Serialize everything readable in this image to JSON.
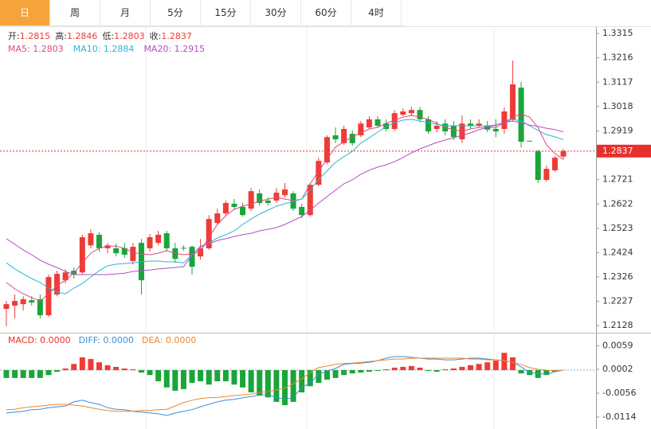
{
  "tabs": [
    "日",
    "周",
    "月",
    "5分",
    "15分",
    "30分",
    "60分",
    "4时"
  ],
  "active_tab": 0,
  "chart_data": [
    {
      "type": "candlestick",
      "info_labels": [
        "开:",
        "高:",
        "低:",
        "收:"
      ],
      "up_color": "#ef3b36",
      "down_color": "#19a53a",
      "open": [
        1.2196,
        1.2209,
        1.2215,
        1.2231,
        1.2235,
        1.217,
        1.2254,
        1.2312,
        1.2351,
        1.2344,
        1.2454,
        1.2497,
        1.2442,
        1.2442,
        1.2442,
        1.239,
        1.2464,
        1.2442,
        1.2464,
        1.2503,
        1.2442,
        1.2444,
        1.2448,
        1.2409,
        1.2442,
        1.2545,
        1.2584,
        1.2623,
        1.261,
        1.2603,
        1.2665,
        1.2636,
        1.2636,
        1.2658,
        1.2665,
        1.261,
        1.2577,
        1.27,
        1.2791,
        1.2901,
        1.2869,
        1.2907,
        1.2901,
        1.2933,
        1.2966,
        1.2949,
        1.2927,
        1.2985,
        1.2991,
        1.3004,
        1.2966,
        1.2927,
        1.2949,
        1.294,
        1.2885,
        1.2949,
        1.294,
        1.294,
        1.2927,
        1.2927,
        1.2966,
        1.3095,
        1.2879,
        1.2836,
        1.272,
        1.2759,
        1.2815
      ],
      "high": [
        1.2228,
        1.2254,
        1.2247,
        1.2247,
        1.2254,
        1.2335,
        1.2351,
        1.2357,
        1.2364,
        1.2497,
        1.2519,
        1.2506,
        1.2464,
        1.2461,
        1.2464,
        1.2464,
        1.248,
        1.25,
        1.2513,
        1.2513,
        1.2464,
        1.2454,
        1.2454,
        1.248,
        1.2577,
        1.2603,
        1.2636,
        1.2642,
        1.2626,
        1.2687,
        1.2681,
        1.2649,
        1.2687,
        1.2707,
        1.2674,
        1.2623,
        1.2707,
        1.281,
        1.2901,
        1.2933,
        1.294,
        1.292,
        1.2959,
        1.2979,
        1.2979,
        1.2966,
        1.3004,
        1.3011,
        1.3017,
        1.3017,
        1.2979,
        1.2959,
        1.2966,
        1.2959,
        1.2982,
        1.2966,
        1.2966,
        1.2959,
        1.2966,
        1.3014,
        1.3205,
        1.3118,
        1.2879,
        1.2843,
        1.2778,
        1.2817,
        1.2846
      ],
      "low": [
        1.2125,
        1.2157,
        1.2189,
        1.2209,
        1.2157,
        1.2163,
        1.2247,
        1.2299,
        1.2319,
        1.2335,
        1.2442,
        1.2429,
        1.2422,
        1.2409,
        1.2403,
        1.2377,
        1.2254,
        1.2429,
        1.2454,
        1.2429,
        1.2383,
        1.2432,
        1.2335,
        1.2396,
        1.2435,
        1.2539,
        1.2577,
        1.2597,
        1.2571,
        1.2594,
        1.2616,
        1.2616,
        1.2626,
        1.2649,
        1.2594,
        1.2564,
        1.2571,
        1.2694,
        1.2784,
        1.2869,
        1.2862,
        1.2859,
        1.2894,
        1.2927,
        1.2933,
        1.2917,
        1.292,
        1.2979,
        1.2979,
        1.2953,
        1.2907,
        1.2914,
        1.2901,
        1.2882,
        1.2869,
        1.2927,
        1.2933,
        1.2914,
        1.2894,
        1.2907,
        1.2959,
        1.2852,
        1.2878,
        1.2707,
        1.2713,
        1.2752,
        1.2803
      ],
      "close": [
        1.2215,
        1.2228,
        1.2235,
        1.2222,
        1.217,
        1.2325,
        1.2338,
        1.2344,
        1.2335,
        1.2487,
        1.2503,
        1.2442,
        1.2454,
        1.2422,
        1.2416,
        1.2448,
        1.2312,
        1.2487,
        1.2497,
        1.2442,
        1.2399,
        1.2442,
        1.2367,
        1.2442,
        1.2561,
        1.2584,
        1.2626,
        1.261,
        1.2577,
        1.2674,
        1.2626,
        1.2626,
        1.2668,
        1.2681,
        1.2603,
        1.2577,
        1.27,
        1.2797,
        1.2894,
        1.2885,
        1.2927,
        1.2869,
        1.2949,
        1.2966,
        1.294,
        1.2927,
        1.2991,
        1.2998,
        1.3004,
        1.2966,
        1.2917,
        1.294,
        1.2917,
        1.2894,
        1.2949,
        1.294,
        1.2949,
        1.2924,
        1.2917,
        1.2998,
        1.3108,
        1.2875,
        1.2878,
        1.272,
        1.2765,
        1.281,
        1.2837
      ],
      "series": [
        {
          "name": "MA5: 1.2803",
          "color": "#e04a7c",
          "values": [
            1.2303,
            1.2277,
            1.2257,
            1.2241,
            1.2228,
            1.2257,
            1.229,
            1.2312,
            1.2341,
            1.2383,
            1.2422,
            1.2442,
            1.2451,
            1.2451,
            1.2442,
            1.2425,
            1.2419,
            1.2416,
            1.2422,
            1.2432,
            1.2422,
            1.2416,
            1.2419,
            1.2429,
            1.2487,
            1.2539,
            1.2574,
            1.26,
            1.2613,
            1.2623,
            1.2633,
            1.2642,
            1.2649,
            1.2642,
            1.2636,
            1.2642,
            1.2704,
            1.2756,
            1.2804,
            1.2853,
            1.2875,
            1.2895,
            1.2911,
            1.2927,
            1.2933,
            1.295,
            1.2963,
            1.2975,
            1.2982,
            1.2975,
            1.2966,
            1.295,
            1.2933,
            1.2924,
            1.2917,
            1.2927,
            1.2933,
            1.2933,
            1.2933,
            1.2953,
            1.2975,
            1.2988,
            1.2975,
            1.2933,
            1.2862,
            1.2827,
            1.2803
          ]
        },
        {
          "name": "MA10: 1.2884",
          "color": "#2db5d6",
          "values": [
            1.2383,
            1.2358,
            1.2338,
            1.2319,
            1.2303,
            1.228,
            1.2264,
            1.2257,
            1.228,
            1.2299,
            1.2325,
            1.2351,
            1.2371,
            1.2377,
            1.238,
            1.2383,
            1.2387,
            1.239,
            1.239,
            1.2387,
            1.2387,
            1.2383,
            1.2416,
            1.2445,
            1.2464,
            1.2484,
            1.2497,
            1.2513,
            1.2539,
            1.2561,
            1.2581,
            1.2597,
            1.2613,
            1.2623,
            1.2633,
            1.2642,
            1.2678,
            1.2723,
            1.2756,
            1.2791,
            1.2814,
            1.2836,
            1.2869,
            1.2891,
            1.2914,
            1.2937,
            1.2953,
            1.2963,
            1.2966,
            1.2959,
            1.2953,
            1.2946,
            1.294,
            1.294,
            1.294,
            1.294,
            1.294,
            1.294,
            1.2943,
            1.2953,
            1.2966,
            1.2959,
            1.294,
            1.2921,
            1.2904,
            1.2895,
            1.2884
          ]
        },
        {
          "name": "MA20: 1.2915",
          "color": "#b24fc4",
          "values": [
            1.2481,
            1.2458,
            1.2435,
            1.2416,
            1.2393,
            1.2377,
            1.2364,
            1.2348,
            1.2335,
            1.2335,
            1.2335,
            1.2335,
            1.2335,
            1.2338,
            1.2341,
            1.2348,
            1.2351,
            1.2354,
            1.2358,
            1.2361,
            1.2364,
            1.2367,
            1.2413,
            1.2451,
            1.2461,
            1.2474,
            1.2481,
            1.249,
            1.2497,
            1.2503,
            1.2513,
            1.2519,
            1.2526,
            1.2539,
            1.2555,
            1.2571,
            1.2597,
            1.2626,
            1.2652,
            1.2678,
            1.2704,
            1.272,
            1.2743,
            1.2759,
            1.2772,
            1.2781,
            1.2794,
            1.2811,
            1.283,
            1.2846,
            1.2859,
            1.2872,
            1.2882,
            1.2891,
            1.2901,
            1.2911,
            1.2924,
            1.2933,
            1.2943,
            1.2953,
            1.2959,
            1.2953,
            1.2943,
            1.2937,
            1.293,
            1.2924,
            1.2915
          ]
        }
      ],
      "last_price": 1.2837,
      "last_price_color": "#e8302a",
      "ylim": [
        1.2099,
        1.3341
      ],
      "yticks": [
        1.3315,
        1.3216,
        1.3117,
        1.3018,
        1.2919,
        1.2721,
        1.2622,
        1.2523,
        1.2424,
        1.2326,
        1.2227,
        1.2128
      ]
    },
    {
      "type": "macd",
      "histogram": {
        "name": "MACD: 0.0000",
        "color": "#e8302a",
        "up_color": "#ef3b36",
        "down_color": "#19a53a",
        "values": [
          -0.0019,
          -0.0019,
          -0.0019,
          -0.0019,
          -0.0019,
          -0.0012,
          -0.0004,
          0.0004,
          0.0015,
          0.0031,
          0.0027,
          0.0019,
          0.0012,
          0.0008,
          0.0004,
          0.0002,
          -0.0006,
          -0.0012,
          -0.0027,
          -0.0042,
          -0.005,
          -0.0046,
          -0.0031,
          -0.0027,
          -0.0035,
          -0.0027,
          -0.0027,
          -0.0035,
          -0.0042,
          -0.0054,
          -0.0062,
          -0.0066,
          -0.0077,
          -0.0085,
          -0.0077,
          -0.0054,
          -0.0039,
          -0.0031,
          -0.0023,
          -0.0019,
          -0.0012,
          -0.0008,
          -0.0006,
          -0.0004,
          -0.0002,
          0.0002,
          0.0006,
          0.0008,
          0.001,
          0.0006,
          -0.0002,
          -0.0004,
          0.0002,
          0.0004,
          0.0008,
          0.0012,
          0.0015,
          0.0019,
          0.0023,
          0.0042,
          0.0031,
          -0.0008,
          -0.0012,
          -0.0019,
          -0.0012,
          -0.0004,
          0.0
        ]
      },
      "series": [
        {
          "name": "DIFF: 0.0000",
          "color": "#3d8ddc",
          "values": [
            -0.0104,
            -0.0102,
            -0.01,
            -0.0096,
            -0.0095,
            -0.0091,
            -0.0089,
            -0.0087,
            -0.0077,
            -0.0073,
            -0.0079,
            -0.0083,
            -0.0091,
            -0.0095,
            -0.0096,
            -0.01,
            -0.0102,
            -0.0104,
            -0.0106,
            -0.011,
            -0.0104,
            -0.01,
            -0.0096,
            -0.0089,
            -0.0083,
            -0.0077,
            -0.0073,
            -0.0071,
            -0.0067,
            -0.0064,
            -0.006,
            -0.006,
            -0.0066,
            -0.0071,
            -0.0066,
            -0.0042,
            -0.0031,
            -0.001,
            -0.0002,
            0.0004,
            0.0014,
            0.0016,
            0.0017,
            0.0019,
            0.0023,
            0.0029,
            0.0033,
            0.0033,
            0.0031,
            0.0029,
            0.0027,
            0.0027,
            0.0025,
            0.0025,
            0.0027,
            0.0029,
            0.0029,
            0.0027,
            0.0025,
            0.0023,
            0.0019,
            0.0008,
            -0.0006,
            -0.0008,
            -0.001,
            -0.0004,
            0.0
          ]
        },
        {
          "name": "DEA: 0.0000",
          "color": "#f0862c",
          "values": [
            -0.0096,
            -0.0095,
            -0.0091,
            -0.0089,
            -0.0087,
            -0.0085,
            -0.0083,
            -0.0083,
            -0.0085,
            -0.0087,
            -0.0091,
            -0.0095,
            -0.0098,
            -0.01,
            -0.01,
            -0.01,
            -0.0098,
            -0.0098,
            -0.0096,
            -0.0095,
            -0.0087,
            -0.0079,
            -0.0073,
            -0.0069,
            -0.0067,
            -0.0066,
            -0.0064,
            -0.0062,
            -0.006,
            -0.0058,
            -0.0054,
            -0.0052,
            -0.0048,
            -0.0044,
            -0.0033,
            -0.0021,
            -0.0006,
            0.0006,
            0.001,
            0.0014,
            0.0016,
            0.0017,
            0.0019,
            0.0021,
            0.0023,
            0.0025,
            0.0027,
            0.0027,
            0.0029,
            0.0029,
            0.0029,
            0.0029,
            0.0029,
            0.0029,
            0.0029,
            0.0027,
            0.0027,
            0.0025,
            0.0025,
            0.0023,
            0.0019,
            0.0014,
            0.0006,
            0.0002,
            0.0,
            -0.0002,
            0.0
          ]
        }
      ],
      "ylim": [
        -0.0139,
        0.0087
      ],
      "yticks": [
        0.0059,
        0.0002,
        -0.0056,
        -0.0114
      ]
    }
  ]
}
